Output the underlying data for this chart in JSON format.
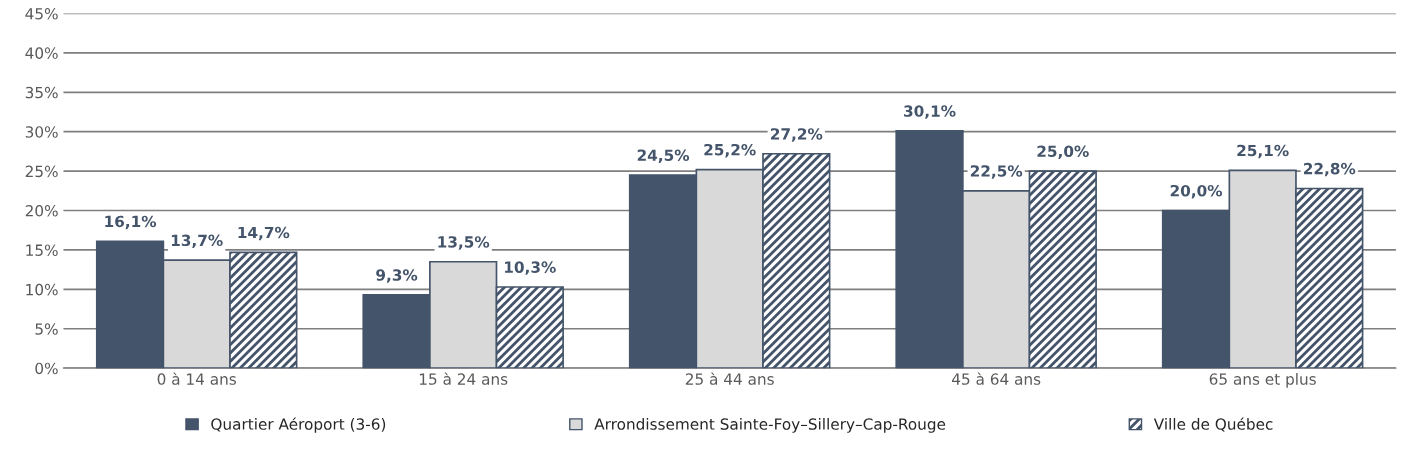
{
  "chart_data": {
    "type": "bar",
    "categories": [
      "0 à 14 ans",
      "15 à 24 ans",
      "25 à 44 ans",
      "45 à 64 ans",
      "65 ans et plus"
    ],
    "series": [
      {
        "name": "Quartier Aéroport (3-6)",
        "color": "#44546a",
        "values": [
          16.1,
          9.3,
          24.5,
          30.1,
          20.0
        ],
        "value_labels": [
          "16,1%",
          "9,3%",
          "24,5%",
          "30,1%",
          "20,0%"
        ]
      },
      {
        "name": "Arrondissement Sainte-Foy–Sillery–Cap-Rouge",
        "color": "#d9d9d9",
        "values": [
          13.7,
          13.5,
          25.2,
          22.5,
          25.1
        ],
        "value_labels": [
          "13,7%",
          "13,5%",
          "25,2%",
          "22,5%",
          "25,1%"
        ]
      },
      {
        "name": "Ville de Québec",
        "color": "#44546a",
        "values": [
          14.7,
          10.3,
          27.2,
          25.0,
          22.8
        ],
        "value_labels": [
          "14,7%",
          "10,3%",
          "27,2%",
          "25,0%",
          "22,8%"
        ]
      }
    ],
    "ylim": [
      0,
      45
    ],
    "yticks": [
      {
        "value": 0,
        "label": "0%"
      },
      {
        "value": 5,
        "label": "5%"
      },
      {
        "value": 10,
        "label": "10%"
      },
      {
        "value": 15,
        "label": "15%"
      },
      {
        "value": 20,
        "label": "20%"
      },
      {
        "value": 25,
        "label": "25%"
      },
      {
        "value": 30,
        "label": "30%"
      },
      {
        "value": 35,
        "label": "35%"
      },
      {
        "value": 40,
        "label": "40%"
      },
      {
        "value": 45,
        "label": "45%"
      }
    ],
    "grid": "y",
    "legend": "bottom"
  }
}
